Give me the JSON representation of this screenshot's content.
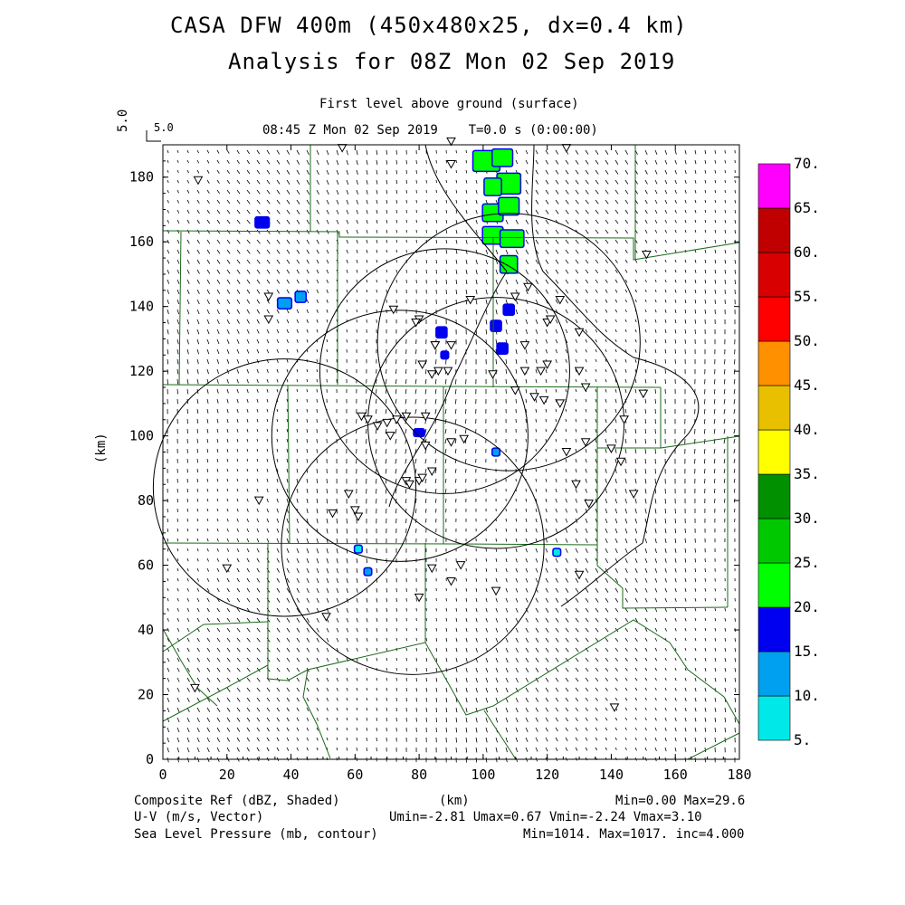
{
  "header": {
    "title_line1": "CASA DFW 400m (450x480x25, dx=0.4 km)",
    "title_line2": "Analysis for 08Z Mon 02 Sep 2019",
    "level": "First level above ground (surface)",
    "valid_time": "08:45 Z Mon 02 Sep 2019    T=0.0 s (0:00:00)",
    "vector_ref_top": "5.0",
    "vector_ref_side": "5.0"
  },
  "chart_data": {
    "type": "heatmap",
    "xlabel": "(km)",
    "ylabel": "(km)",
    "xlim": [
      0,
      180
    ],
    "ylim": [
      0,
      190
    ],
    "xticks": [
      "0",
      "20",
      "40",
      "60",
      "80",
      "100",
      "120",
      "140",
      "160",
      "180"
    ],
    "yticks": [
      "0",
      "20",
      "40",
      "60",
      "80",
      "100",
      "120",
      "140",
      "160",
      "180"
    ],
    "colorbar": {
      "labels": [
        "5.",
        "10.",
        "15.",
        "20.",
        "25.",
        "30.",
        "35.",
        "40.",
        "45.",
        "50.",
        "55.",
        "60.",
        "65.",
        "70."
      ],
      "colors": [
        "#00e8e8",
        "#00a0f0",
        "#0000f0",
        "#00ff00",
        "#00c800",
        "#009000",
        "#ffff00",
        "#e8c000",
        "#ff9000",
        "#ff0000",
        "#d80000",
        "#c00000",
        "#ff00ff"
      ]
    },
    "reflectivity_cells": [
      {
        "x": 101,
        "y": 185,
        "w": 8,
        "h": 6,
        "dbz": 22
      },
      {
        "x": 106,
        "y": 186,
        "w": 6,
        "h": 5,
        "dbz": 22
      },
      {
        "x": 108,
        "y": 178,
        "w": 7,
        "h": 6,
        "dbz": 22
      },
      {
        "x": 103,
        "y": 177,
        "w": 5,
        "h": 5,
        "dbz": 20
      },
      {
        "x": 103,
        "y": 169,
        "w": 6,
        "h": 5,
        "dbz": 22
      },
      {
        "x": 108,
        "y": 171,
        "w": 6,
        "h": 5,
        "dbz": 22
      },
      {
        "x": 103,
        "y": 162,
        "w": 6,
        "h": 5,
        "dbz": 22
      },
      {
        "x": 109,
        "y": 161,
        "w": 7,
        "h": 5,
        "dbz": 22
      },
      {
        "x": 108,
        "y": 153,
        "w": 5,
        "h": 5,
        "dbz": 20
      },
      {
        "x": 31,
        "y": 166,
        "w": 4,
        "h": 3,
        "dbz": 15
      },
      {
        "x": 38,
        "y": 141,
        "w": 4,
        "h": 3,
        "dbz": 10
      },
      {
        "x": 43,
        "y": 143,
        "w": 3,
        "h": 3,
        "dbz": 10
      },
      {
        "x": 87,
        "y": 132,
        "w": 3,
        "h": 3,
        "dbz": 15
      },
      {
        "x": 88,
        "y": 125,
        "w": 2,
        "h": 2,
        "dbz": 15
      },
      {
        "x": 104,
        "y": 134,
        "w": 3,
        "h": 3,
        "dbz": 15
      },
      {
        "x": 106,
        "y": 127,
        "w": 3,
        "h": 3,
        "dbz": 15
      },
      {
        "x": 108,
        "y": 139,
        "w": 3,
        "h": 3,
        "dbz": 15
      },
      {
        "x": 80,
        "y": 101,
        "w": 3,
        "h": 2,
        "dbz": 15
      },
      {
        "x": 104,
        "y": 95,
        "w": 2,
        "h": 2,
        "dbz": 10
      },
      {
        "x": 64,
        "y": 58,
        "w": 2,
        "h": 2,
        "dbz": 10
      },
      {
        "x": 61,
        "y": 65,
        "w": 2,
        "h": 2,
        "dbz": 5
      },
      {
        "x": 123,
        "y": 64,
        "w": 2,
        "h": 2,
        "dbz": 5
      }
    ],
    "stations": [
      [
        56,
        189
      ],
      [
        90,
        191
      ],
      [
        126,
        189
      ],
      [
        11,
        179
      ],
      [
        90,
        184
      ],
      [
        33,
        143
      ],
      [
        33,
        136
      ],
      [
        72,
        139
      ],
      [
        96,
        142
      ],
      [
        80,
        136
      ],
      [
        79,
        135
      ],
      [
        110,
        143
      ],
      [
        114,
        146
      ],
      [
        124,
        142
      ],
      [
        120,
        135
      ],
      [
        121,
        136
      ],
      [
        130,
        132
      ],
      [
        85,
        128
      ],
      [
        85,
        128
      ],
      [
        113,
        128
      ],
      [
        86,
        120
      ],
      [
        90,
        128
      ],
      [
        81,
        122
      ],
      [
        84,
        119
      ],
      [
        89,
        120
      ],
      [
        103,
        119
      ],
      [
        113,
        120
      ],
      [
        110,
        114
      ],
      [
        118,
        120
      ],
      [
        120,
        122
      ],
      [
        130,
        120
      ],
      [
        116,
        112
      ],
      [
        119,
        111
      ],
      [
        124,
        110
      ],
      [
        132,
        115
      ],
      [
        144,
        105
      ],
      [
        150,
        113
      ],
      [
        62,
        106
      ],
      [
        64,
        105
      ],
      [
        67,
        103
      ],
      [
        70,
        104
      ],
      [
        71,
        100
      ],
      [
        73,
        105
      ],
      [
        76,
        106
      ],
      [
        82,
        106
      ],
      [
        82,
        97
      ],
      [
        90,
        98
      ],
      [
        94,
        99
      ],
      [
        76,
        86
      ],
      [
        77,
        85
      ],
      [
        80,
        86
      ],
      [
        81,
        87
      ],
      [
        84,
        89
      ],
      [
        126,
        95
      ],
      [
        140,
        96
      ],
      [
        143,
        92
      ],
      [
        129,
        85
      ],
      [
        133,
        79
      ],
      [
        147,
        82
      ],
      [
        30,
        80
      ],
      [
        53,
        76
      ],
      [
        58,
        82
      ],
      [
        61,
        75
      ],
      [
        60,
        77
      ],
      [
        51,
        44
      ],
      [
        20,
        59
      ],
      [
        84,
        59
      ],
      [
        93,
        60
      ],
      [
        90,
        55
      ],
      [
        80,
        50
      ],
      [
        104,
        52
      ],
      [
        130,
        57
      ],
      [
        141,
        16
      ],
      [
        10,
        22
      ],
      [
        132,
        98
      ],
      [
        151,
        156
      ]
    ],
    "annotations": {
      "colorbar_unit": "",
      "x_axis_label": "(km)"
    }
  },
  "footer": {
    "left1": "Composite Ref (dBZ, Shaded)",
    "left2": "U-V (m/s, Vector)",
    "left3": "Sea Level Pressure (mb, contour)",
    "center": "(km)",
    "right1": "Min=0.00 Max=29.6",
    "right2": "Umin=-2.81 Umax=0.67 Vmin=-2.24 Vmax=3.10",
    "right3": "Min=1014. Max=1017. inc=4.000"
  }
}
